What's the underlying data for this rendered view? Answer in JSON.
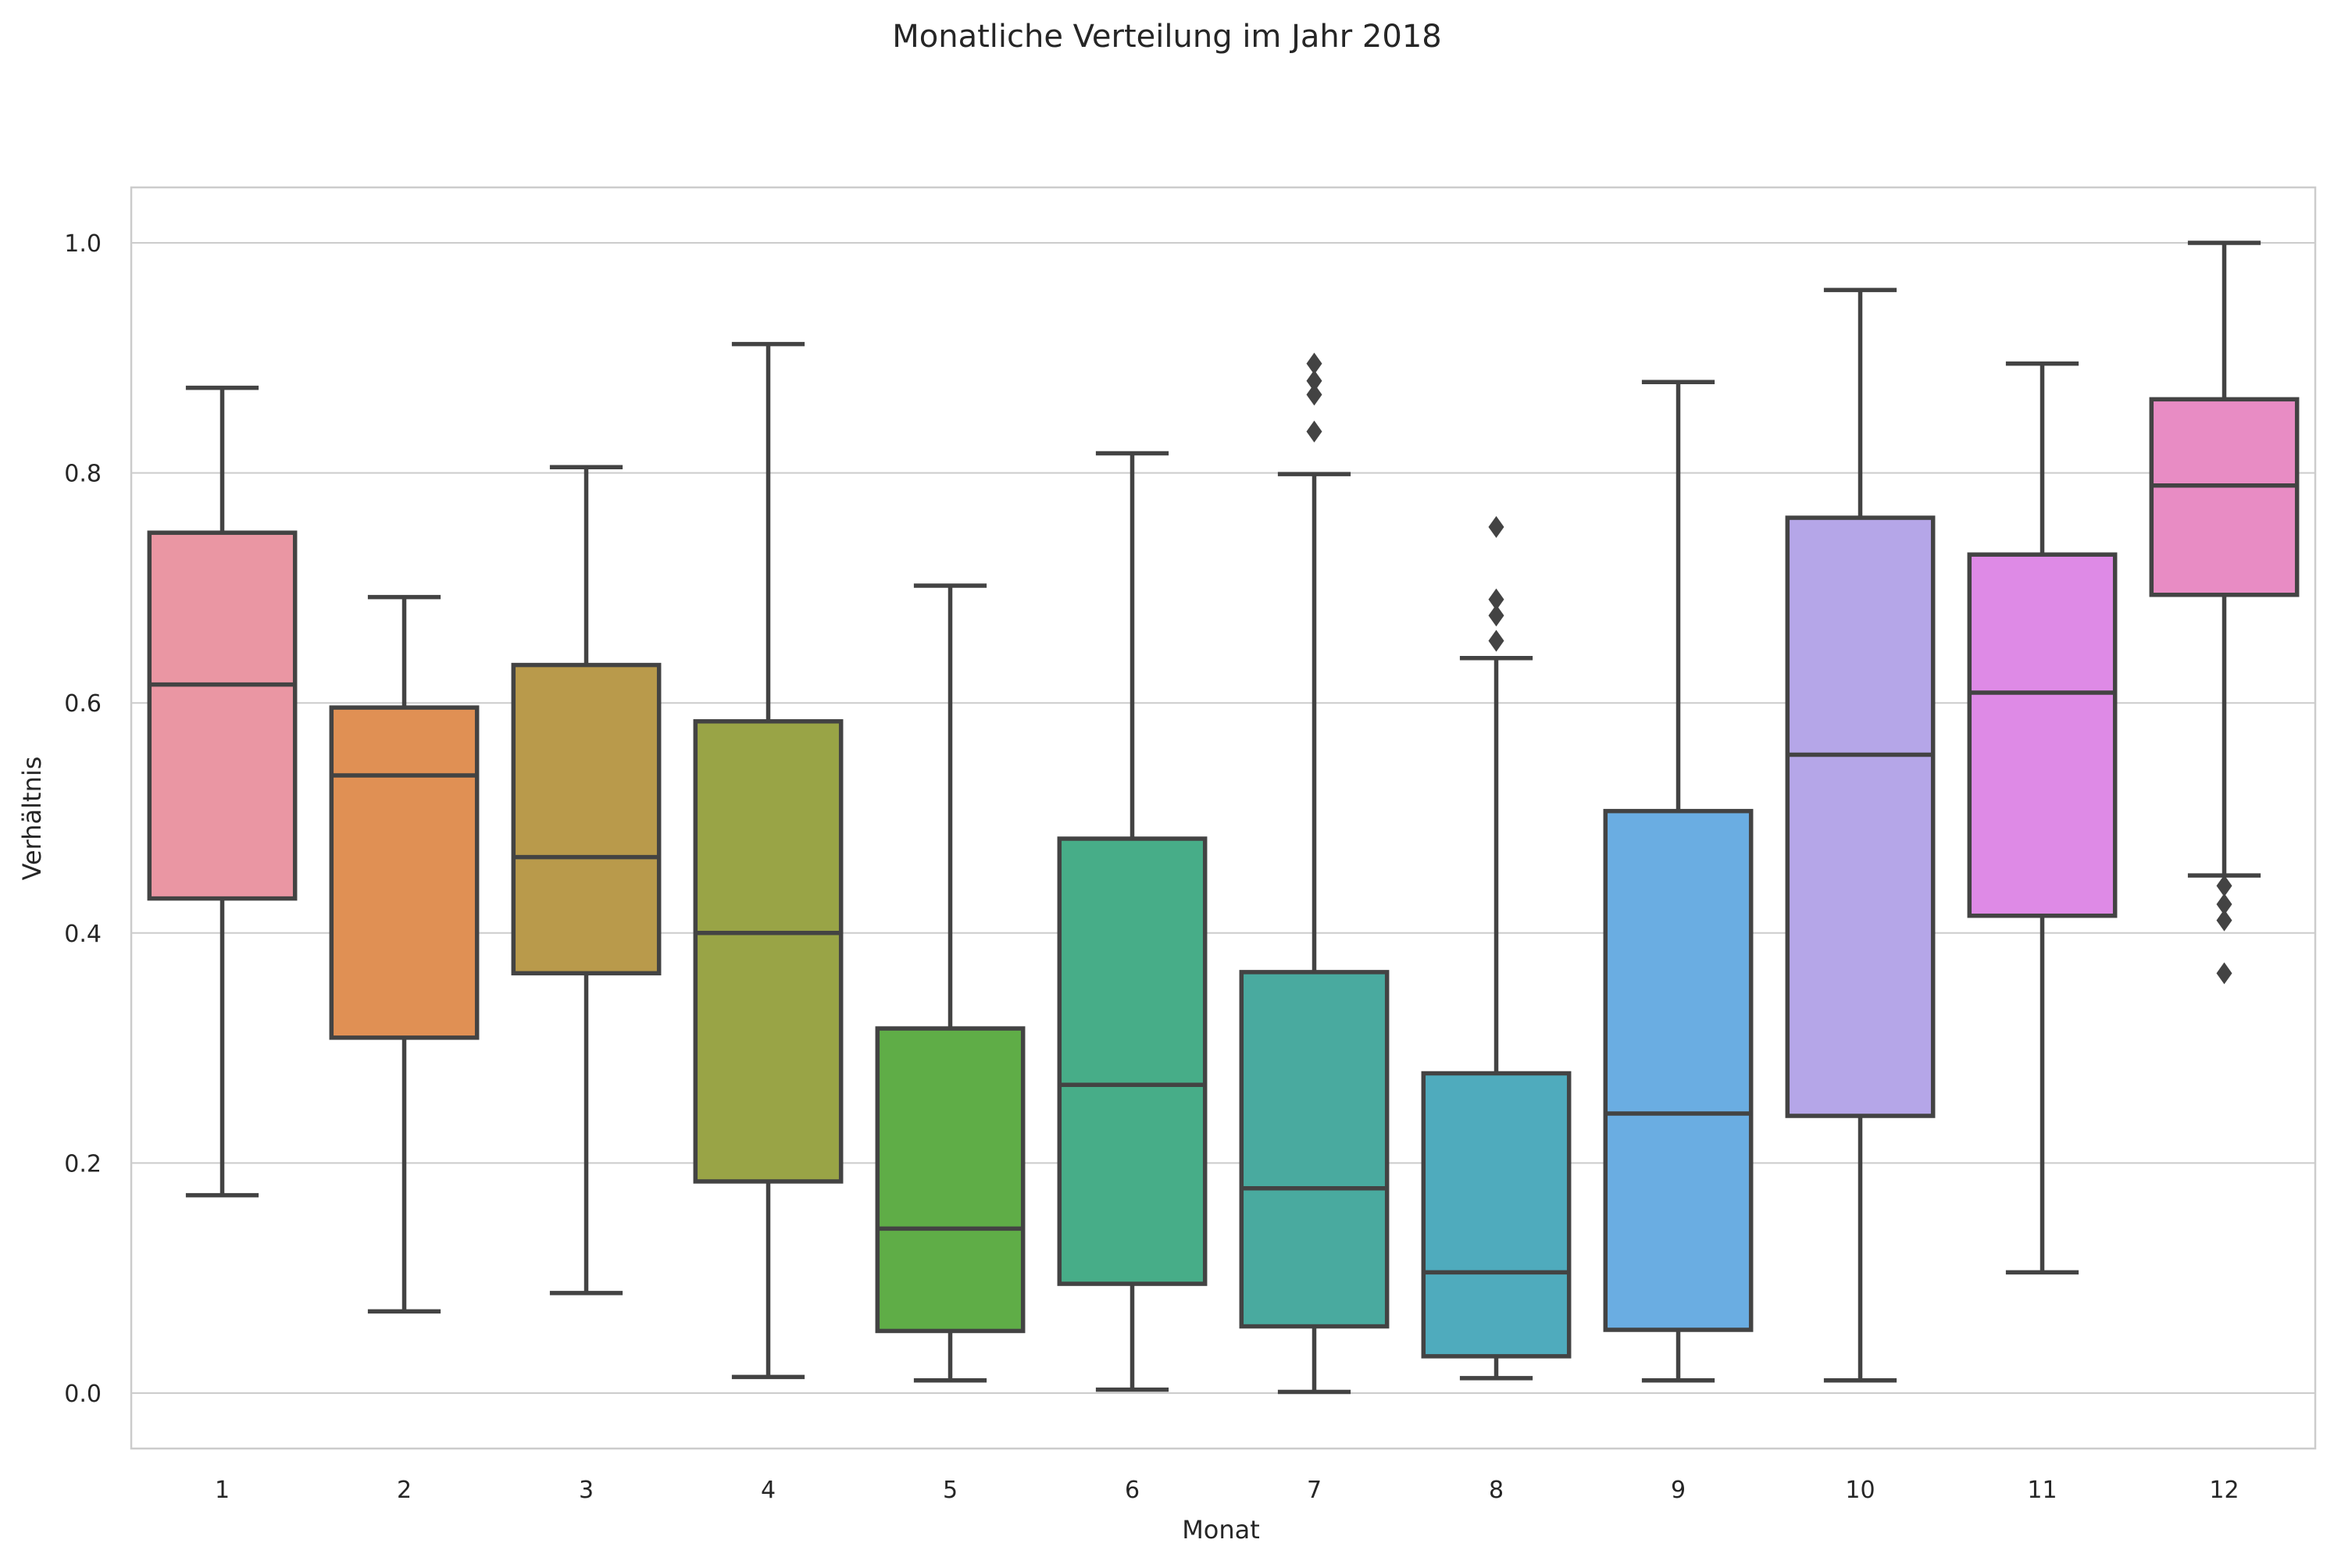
{
  "chart_data": {
    "type": "box",
    "title": "Monatliche Verteilung im Jahr 2018",
    "xlabel": "Monat",
    "ylabel": "Verhältnis",
    "ylim": [
      -0.048,
      1.05
    ],
    "yticks": [
      0.0,
      0.2,
      0.4,
      0.6,
      0.8,
      1.0
    ],
    "ytick_labels": [
      "0.0",
      "0.2",
      "0.4",
      "0.6",
      "0.8",
      "1.0"
    ],
    "grid": true,
    "categories": [
      "1",
      "2",
      "3",
      "4",
      "5",
      "6",
      "7",
      "8",
      "9",
      "10",
      "11",
      "12"
    ],
    "boxes": [
      {
        "category": "1",
        "whisker_low": 0.172,
        "q1": 0.43,
        "median": 0.616,
        "q3": 0.748,
        "whisker_high": 0.874,
        "outliers": [],
        "color": "#ea96a3"
      },
      {
        "category": "2",
        "whisker_low": 0.071,
        "q1": 0.309,
        "median": 0.537,
        "q3": 0.596,
        "whisker_high": 0.692,
        "outliers": [],
        "color": "#e09054"
      },
      {
        "category": "3",
        "whisker_low": 0.087,
        "q1": 0.365,
        "median": 0.466,
        "q3": 0.633,
        "whisker_high": 0.805,
        "outliers": [],
        "color": "#b99a4b"
      },
      {
        "category": "4",
        "whisker_low": 0.014,
        "q1": 0.184,
        "median": 0.4,
        "q3": 0.584,
        "whisker_high": 0.912,
        "outliers": [],
        "color": "#99a446"
      },
      {
        "category": "5",
        "whisker_low": 0.011,
        "q1": 0.054,
        "median": 0.143,
        "q3": 0.317,
        "whisker_high": 0.702,
        "outliers": [],
        "color": "#5fad47"
      },
      {
        "category": "6",
        "whisker_low": 0.003,
        "q1": 0.095,
        "median": 0.268,
        "q3": 0.482,
        "whisker_high": 0.817,
        "outliers": [],
        "color": "#47ad88"
      },
      {
        "category": "7",
        "whisker_low": 0.001,
        "q1": 0.058,
        "median": 0.178,
        "q3": 0.366,
        "whisker_high": 0.799,
        "outliers": [
          0.836,
          0.868,
          0.88,
          0.895
        ],
        "color": "#49aa9f"
      },
      {
        "category": "8",
        "whisker_low": 0.013,
        "q1": 0.032,
        "median": 0.105,
        "q3": 0.278,
        "whisker_high": 0.639,
        "outliers": [
          0.654,
          0.676,
          0.69,
          0.753
        ],
        "color": "#4fabbd"
      },
      {
        "category": "9",
        "whisker_low": 0.011,
        "q1": 0.055,
        "median": 0.243,
        "q3": 0.506,
        "whisker_high": 0.879,
        "outliers": [],
        "color": "#6aade2"
      },
      {
        "category": "10",
        "whisker_low": 0.011,
        "q1": 0.241,
        "median": 0.555,
        "q3": 0.761,
        "whisker_high": 0.959,
        "outliers": [],
        "color": "#b5a6e8"
      },
      {
        "category": "11",
        "whisker_low": 0.105,
        "q1": 0.415,
        "median": 0.609,
        "q3": 0.729,
        "whisker_high": 0.895,
        "outliers": [],
        "color": "#de8ae6"
      },
      {
        "category": "12",
        "whisker_low": 0.45,
        "q1": 0.694,
        "median": 0.789,
        "q3": 0.864,
        "whisker_high": 1.0,
        "outliers": [
          0.365,
          0.411,
          0.425,
          0.441
        ],
        "color": "#e88cc4"
      }
    ]
  }
}
